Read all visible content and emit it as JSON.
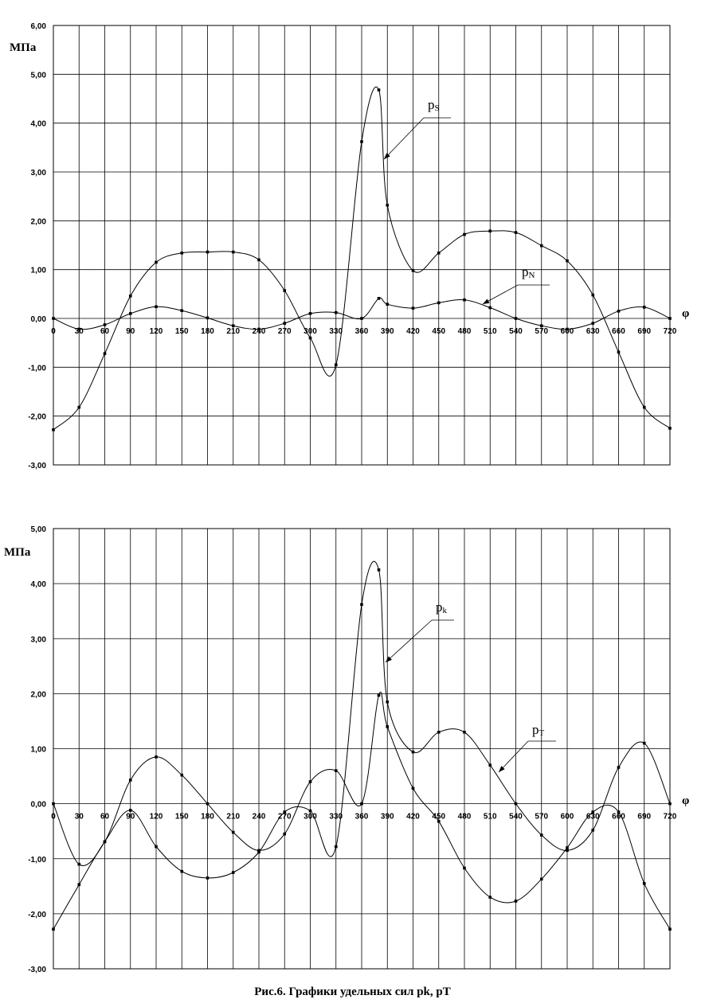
{
  "caption": "Рис.6. Графики удельных сил pk, pT",
  "chart_data": [
    {
      "type": "line",
      "ylabel": "МПа",
      "xlabel": "φ",
      "x_ticks": [
        "0",
        "30",
        "60",
        "90",
        "120",
        "150",
        "180",
        "210",
        "240",
        "270",
        "300",
        "330",
        "360",
        "390",
        "420",
        "450",
        "480",
        "510",
        "540",
        "570",
        "600",
        "630",
        "660",
        "690",
        "720"
      ],
      "y_ticks": [
        "6,00",
        "5,00",
        "4,00",
        "3,00",
        "2,00",
        "1,00",
        "0,00",
        "-1,00",
        "-2,00",
        "-3,00"
      ],
      "xlim": [
        0,
        720
      ],
      "ylim": [
        -3,
        6
      ],
      "grid": true,
      "series": [
        {
          "name": "pS",
          "x": [
            0,
            30,
            60,
            90,
            120,
            150,
            180,
            210,
            240,
            270,
            300,
            330,
            360,
            380,
            390,
            420,
            450,
            480,
            510,
            540,
            570,
            600,
            630,
            660,
            690,
            720
          ],
          "y": [
            -2.28,
            -1.82,
            -0.72,
            0.46,
            1.15,
            1.34,
            1.36,
            1.36,
            1.2,
            0.57,
            -0.4,
            -0.95,
            3.62,
            4.68,
            2.32,
            0.98,
            1.34,
            1.72,
            1.79,
            1.76,
            1.49,
            1.18,
            0.48,
            -0.69,
            -1.82,
            -2.25
          ]
        },
        {
          "name": "pN",
          "x": [
            0,
            30,
            60,
            90,
            120,
            150,
            180,
            210,
            240,
            270,
            300,
            330,
            360,
            380,
            390,
            420,
            450,
            480,
            510,
            540,
            570,
            600,
            630,
            660,
            690,
            720
          ],
          "y": [
            0.0,
            -0.22,
            -0.13,
            0.1,
            0.24,
            0.16,
            0.01,
            -0.15,
            -0.22,
            -0.1,
            0.1,
            0.12,
            0.0,
            0.41,
            0.29,
            0.21,
            0.32,
            0.38,
            0.22,
            0.0,
            -0.15,
            -0.22,
            -0.1,
            0.15,
            0.23,
            0.0
          ]
        }
      ],
      "annotations": [
        {
          "text": "p",
          "sub": "S"
        },
        {
          "text": "p",
          "sub": "N"
        }
      ]
    },
    {
      "type": "line",
      "ylabel": "МПа",
      "xlabel": "φ",
      "x_ticks": [
        "0",
        "30",
        "60",
        "90",
        "120",
        "150",
        "180",
        "210",
        "240",
        "270",
        "300",
        "330",
        "360",
        "390",
        "420",
        "450",
        "480",
        "510",
        "540",
        "570",
        "600",
        "630",
        "660",
        "690",
        "720"
      ],
      "y_ticks": [
        "5,00",
        "4,00",
        "3,00",
        "2,00",
        "1,00",
        "0,00",
        "-1,00",
        "-2,00",
        "-3,00"
      ],
      "xlim": [
        0,
        720
      ],
      "ylim": [
        -3,
        5
      ],
      "grid": true,
      "series": [
        {
          "name": "pk",
          "x": [
            0,
            30,
            60,
            90,
            120,
            150,
            180,
            210,
            240,
            270,
            300,
            330,
            360,
            380,
            390,
            420,
            450,
            480,
            510,
            540,
            570,
            600,
            630,
            660,
            690,
            720
          ],
          "y": [
            -2.28,
            -1.47,
            -0.69,
            -0.12,
            -0.78,
            -1.23,
            -1.35,
            -1.25,
            -0.88,
            -0.15,
            -0.13,
            -0.78,
            3.62,
            4.25,
            1.85,
            0.94,
            1.3,
            1.3,
            0.7,
            0.0,
            -0.57,
            -0.85,
            -0.48,
            0.66,
            1.1,
            0.0
          ]
        },
        {
          "name": "pT",
          "x": [
            0,
            30,
            60,
            90,
            120,
            150,
            180,
            210,
            240,
            270,
            300,
            330,
            360,
            380,
            390,
            420,
            450,
            480,
            510,
            540,
            570,
            600,
            630,
            660,
            690,
            720
          ],
          "y": [
            0.0,
            -1.1,
            -0.69,
            0.43,
            0.85,
            0.52,
            0.0,
            -0.52,
            -0.85,
            -0.55,
            0.4,
            0.6,
            0.0,
            1.97,
            1.4,
            0.28,
            -0.32,
            -1.17,
            -1.7,
            -1.77,
            -1.37,
            -0.8,
            -0.15,
            -0.15,
            -1.45,
            -2.28
          ]
        }
      ],
      "annotations": [
        {
          "text": "p",
          "sub": "k"
        },
        {
          "text": "p",
          "sub": "T"
        }
      ]
    }
  ]
}
